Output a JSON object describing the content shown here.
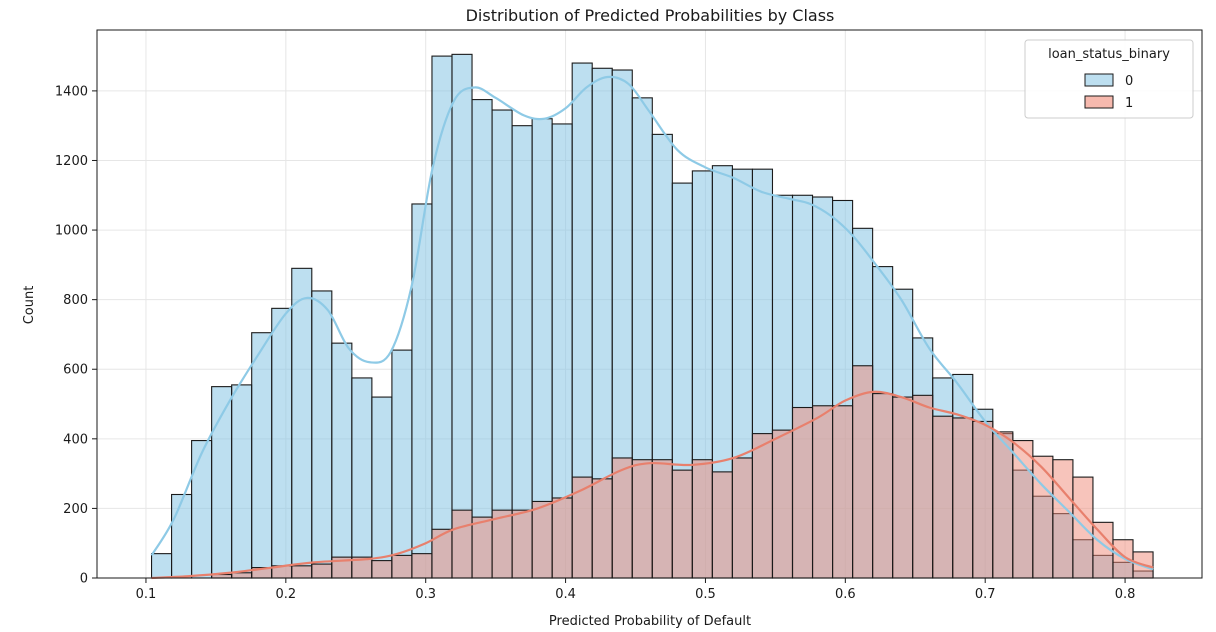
{
  "chart_data": {
    "type": "histogram",
    "title": "Distribution of Predicted Probabilities by Class",
    "xlabel": "Predicted Probability of Default",
    "ylabel": "Count",
    "xlim": [
      0.065,
      0.855
    ],
    "ylim": [
      0,
      1575
    ],
    "xticks": [
      0.1,
      0.2,
      0.3,
      0.4,
      0.5,
      0.6,
      0.7,
      0.8
    ],
    "xtick_labels": [
      "0.1",
      "0.2",
      "0.3",
      "0.4",
      "0.5",
      "0.6",
      "0.7",
      "0.8"
    ],
    "yticks": [
      0,
      200,
      400,
      600,
      800,
      1000,
      1200,
      1400
    ],
    "ytick_labels": [
      "0",
      "200",
      "400",
      "600",
      "800",
      "1000",
      "1200",
      "1400"
    ],
    "grid": true,
    "bin_start": 0.104,
    "bin_width": 0.01432,
    "legend": {
      "title": "loan_status_binary",
      "placement": "top-right"
    },
    "series": [
      {
        "name": "0",
        "color": "#87c4e3",
        "kde_color": "#8ecae6",
        "values": [
          70,
          240,
          395,
          550,
          555,
          705,
          775,
          890,
          825,
          675,
          575,
          520,
          655,
          1075,
          1500,
          1505,
          1375,
          1345,
          1300,
          1320,
          1305,
          1480,
          1465,
          1460,
          1380,
          1275,
          1135,
          1170,
          1185,
          1175,
          1175,
          1100,
          1100,
          1095,
          1085,
          1005,
          895,
          830,
          690,
          575,
          585,
          485,
          415,
          310,
          235,
          185,
          110,
          65,
          45,
          20
        ]
      },
      {
        "name": "1",
        "color": "#f08a78",
        "kde_color": "#e8806d",
        "values": [
          0,
          0,
          0,
          10,
          15,
          30,
          35,
          35,
          40,
          60,
          60,
          50,
          65,
          70,
          140,
          195,
          175,
          195,
          195,
          220,
          230,
          290,
          285,
          345,
          340,
          340,
          310,
          340,
          305,
          345,
          415,
          425,
          490,
          495,
          495,
          610,
          530,
          520,
          525,
          465,
          460,
          450,
          420,
          395,
          350,
          340,
          290,
          160,
          110,
          75
        ]
      }
    ],
    "kde": [
      {
        "series": "0",
        "points": [
          [
            0.104,
            65
          ],
          [
            0.12,
            170
          ],
          [
            0.14,
            360
          ],
          [
            0.16,
            510
          ],
          [
            0.18,
            640
          ],
          [
            0.2,
            760
          ],
          [
            0.215,
            805
          ],
          [
            0.23,
            770
          ],
          [
            0.245,
            660
          ],
          [
            0.26,
            620
          ],
          [
            0.275,
            650
          ],
          [
            0.29,
            840
          ],
          [
            0.305,
            1180
          ],
          [
            0.32,
            1370
          ],
          [
            0.335,
            1410
          ],
          [
            0.35,
            1380
          ],
          [
            0.37,
            1330
          ],
          [
            0.385,
            1320
          ],
          [
            0.4,
            1350
          ],
          [
            0.415,
            1410
          ],
          [
            0.43,
            1440
          ],
          [
            0.445,
            1420
          ],
          [
            0.46,
            1340
          ],
          [
            0.48,
            1230
          ],
          [
            0.5,
            1180
          ],
          [
            0.52,
            1150
          ],
          [
            0.54,
            1110
          ],
          [
            0.56,
            1090
          ],
          [
            0.575,
            1075
          ],
          [
            0.59,
            1040
          ],
          [
            0.605,
            985
          ],
          [
            0.62,
            910
          ],
          [
            0.64,
            800
          ],
          [
            0.66,
            660
          ],
          [
            0.68,
            560
          ],
          [
            0.7,
            450
          ],
          [
            0.72,
            360
          ],
          [
            0.74,
            270
          ],
          [
            0.76,
            190
          ],
          [
            0.78,
            110
          ],
          [
            0.8,
            55
          ],
          [
            0.82,
            25
          ]
        ]
      },
      {
        "series": "1",
        "points": [
          [
            0.104,
            0
          ],
          [
            0.13,
            5
          ],
          [
            0.16,
            15
          ],
          [
            0.19,
            30
          ],
          [
            0.22,
            45
          ],
          [
            0.26,
            55
          ],
          [
            0.28,
            70
          ],
          [
            0.3,
            100
          ],
          [
            0.32,
            140
          ],
          [
            0.35,
            170
          ],
          [
            0.38,
            200
          ],
          [
            0.41,
            250
          ],
          [
            0.44,
            310
          ],
          [
            0.46,
            330
          ],
          [
            0.49,
            325
          ],
          [
            0.52,
            345
          ],
          [
            0.55,
            400
          ],
          [
            0.58,
            460
          ],
          [
            0.6,
            510
          ],
          [
            0.62,
            535
          ],
          [
            0.64,
            520
          ],
          [
            0.66,
            490
          ],
          [
            0.68,
            470
          ],
          [
            0.7,
            440
          ],
          [
            0.72,
            390
          ],
          [
            0.74,
            320
          ],
          [
            0.76,
            230
          ],
          [
            0.78,
            140
          ],
          [
            0.8,
            60
          ],
          [
            0.82,
            30
          ]
        ]
      }
    ]
  }
}
